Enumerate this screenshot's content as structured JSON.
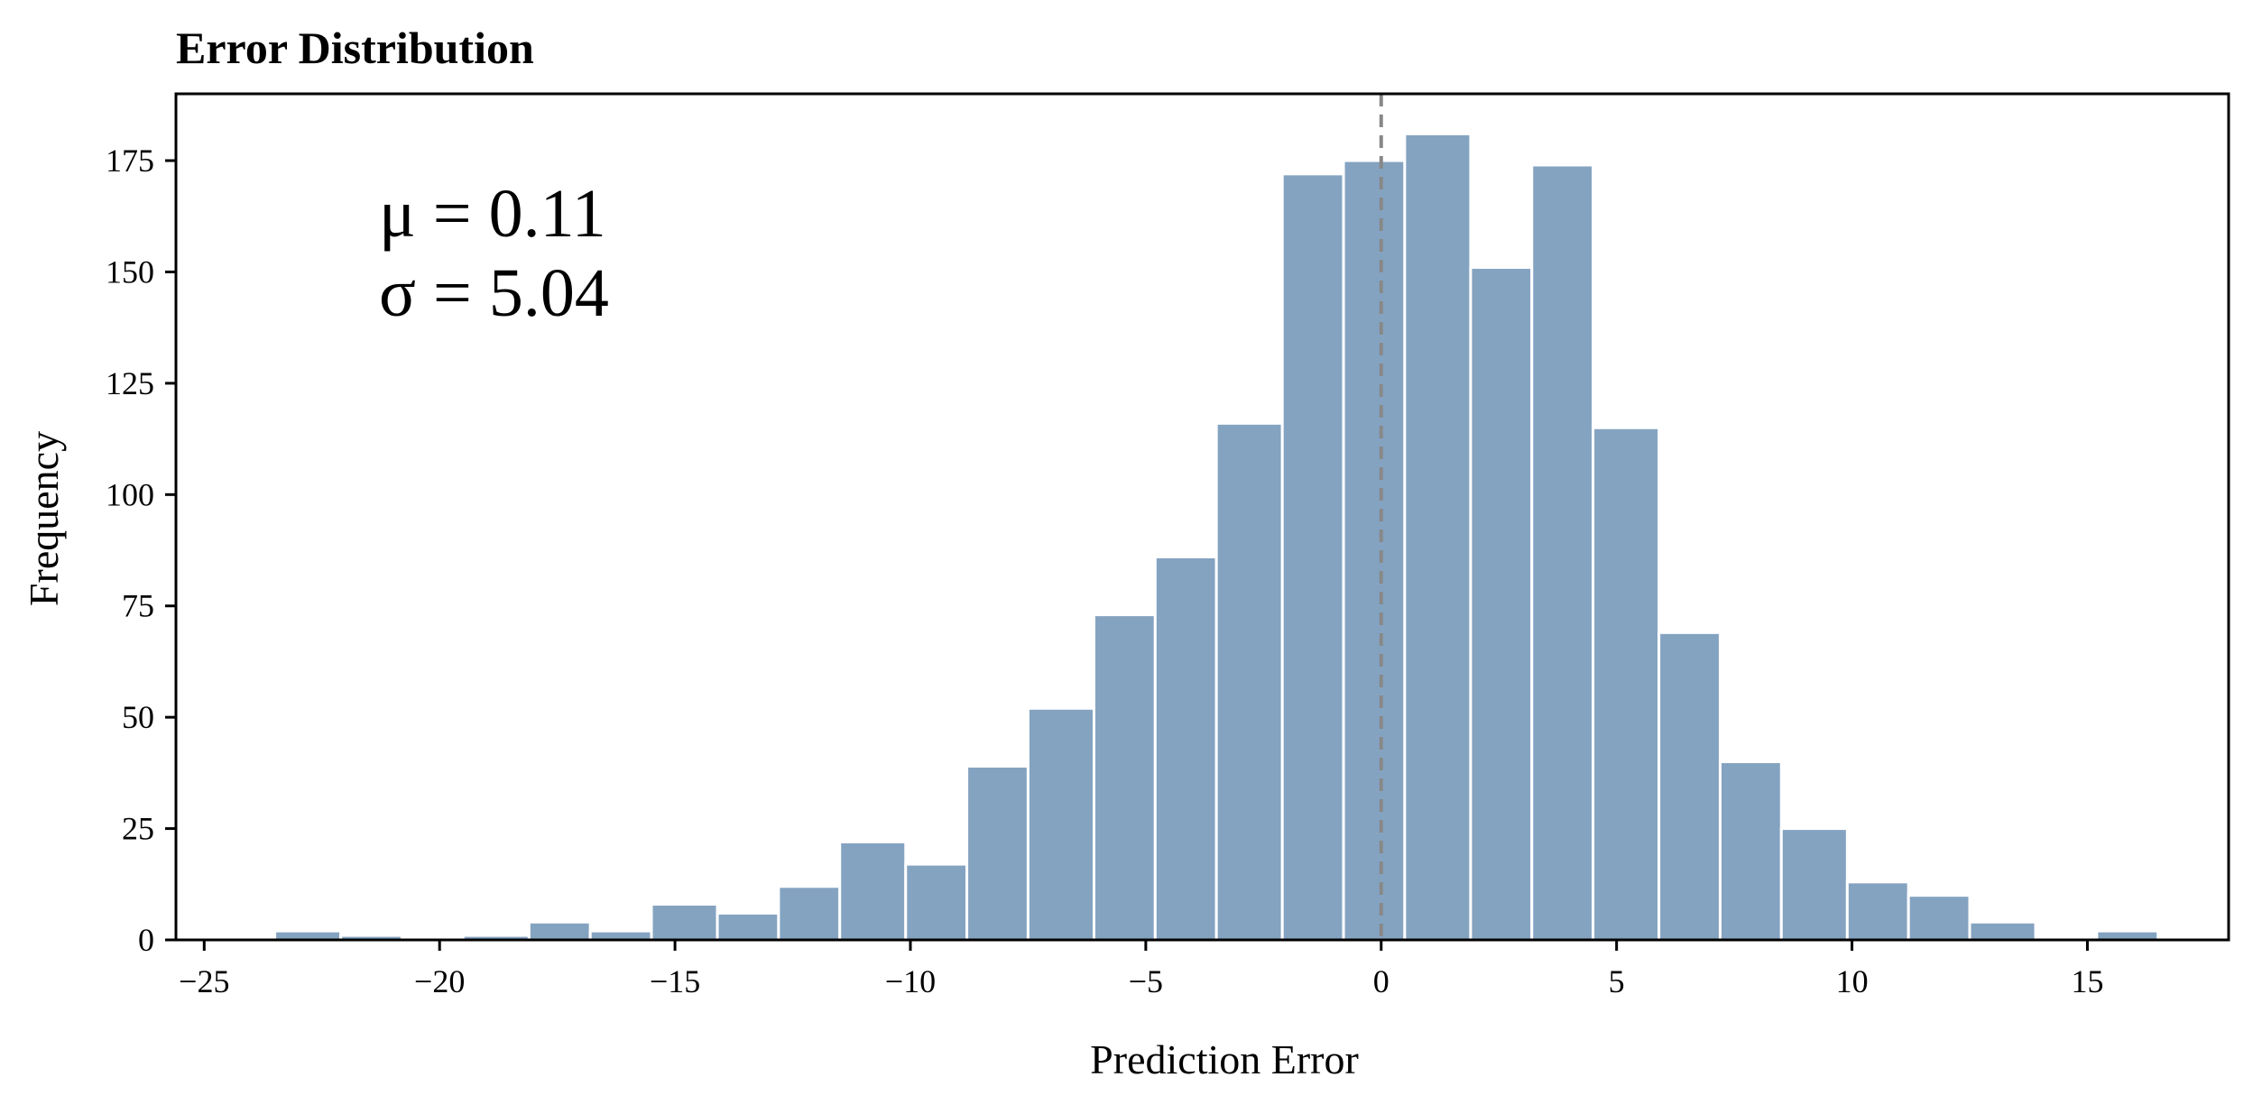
{
  "chart_data": {
    "type": "bar",
    "subtype": "histogram",
    "title": "Error Distribution",
    "xlabel": "Prediction Error",
    "ylabel": "Frequency",
    "xlim": [
      -25.6,
      18
    ],
    "ylim": [
      0,
      190
    ],
    "xticks": [
      -25,
      -20,
      -15,
      -10,
      -5,
      0,
      5,
      10,
      15
    ],
    "xtick_labels": [
      "−25",
      "−20",
      "−15",
      "−10",
      "−5",
      "0",
      "5",
      "10",
      "15"
    ],
    "yticks": [
      0,
      25,
      50,
      75,
      100,
      125,
      150,
      175
    ],
    "ytick_labels": [
      "0",
      "25",
      "50",
      "75",
      "100",
      "125",
      "150",
      "175"
    ],
    "bin_edges": [
      -23.5,
      -22.1,
      -20.8,
      -19.5,
      -18.1,
      -16.8,
      -15.5,
      -14.1,
      -12.8,
      -11.5,
      -10.1,
      -8.8,
      -7.5,
      -6.1,
      -4.8,
      -3.5,
      -2.1,
      -0.8,
      0.5,
      1.9,
      3.2,
      4.5,
      5.9,
      7.2,
      8.5,
      9.9,
      11.2,
      12.5,
      13.9,
      15.2,
      16.5
    ],
    "values": [
      2,
      1,
      0,
      1,
      4,
      2,
      8,
      6,
      12,
      22,
      17,
      39,
      52,
      73,
      86,
      116,
      172,
      175,
      181,
      151,
      174,
      115,
      69,
      40,
      25,
      13,
      10,
      4,
      0,
      2
    ],
    "bar_color": "#84a3c1",
    "bar_edge_color": "#ffffff",
    "reference_line": {
      "x": 0,
      "style": "dashed",
      "color": "#888888"
    },
    "annotations": [
      "μ = 0.11",
      "σ = 5.04"
    ],
    "grid": false,
    "legend": "none"
  }
}
